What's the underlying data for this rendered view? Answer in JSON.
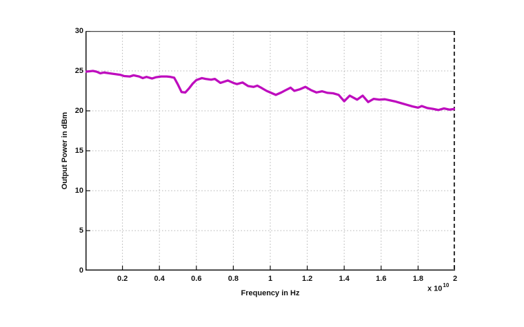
{
  "figure": {
    "background": "#ffffff"
  },
  "chart_data": {
    "type": "line",
    "title": "",
    "xlabel": "Frequency in Hz",
    "ylabel": "Output Power in dBm",
    "x_exponent_base": "x 10",
    "x_exponent_sup": "10",
    "x_units_note": "x values are in units of 1e10 Hz as implied by axis exponent",
    "xlim": [
      0,
      2
    ],
    "ylim": [
      0,
      30
    ],
    "xticks": [
      0.2,
      0.4,
      0.6,
      0.8,
      1,
      1.2,
      1.4,
      1.6,
      1.8,
      2
    ],
    "xtick_labels": [
      "0.2",
      "0.4",
      "0.6",
      "0.8",
      "1",
      "1.2",
      "1.4",
      "1.6",
      "1.8",
      "2"
    ],
    "yticks": [
      0,
      5,
      10,
      15,
      20,
      25,
      30
    ],
    "ytick_labels": [
      "0",
      "5",
      "10",
      "15",
      "20",
      "25",
      "30"
    ],
    "grid": true,
    "legend": null,
    "colors": {
      "line": "#be0dbe",
      "grid": "#b5b5b5",
      "axis": "#111111",
      "box_top": "#454545",
      "box_right_dashed": "#2b2b2b"
    },
    "series": [
      {
        "name": "Output Power",
        "color": "#be0dbe",
        "x": [
          0.0,
          0.02,
          0.04,
          0.06,
          0.08,
          0.1,
          0.13,
          0.16,
          0.19,
          0.21,
          0.24,
          0.26,
          0.29,
          0.31,
          0.33,
          0.36,
          0.38,
          0.41,
          0.44,
          0.46,
          0.48,
          0.5,
          0.52,
          0.54,
          0.56,
          0.58,
          0.6,
          0.63,
          0.65,
          0.68,
          0.7,
          0.73,
          0.75,
          0.77,
          0.8,
          0.82,
          0.85,
          0.88,
          0.91,
          0.93,
          0.95,
          0.98,
          1.0,
          1.03,
          1.06,
          1.08,
          1.11,
          1.13,
          1.16,
          1.19,
          1.22,
          1.25,
          1.28,
          1.31,
          1.34,
          1.37,
          1.4,
          1.43,
          1.47,
          1.5,
          1.53,
          1.56,
          1.59,
          1.62,
          1.65,
          1.68,
          1.71,
          1.74,
          1.77,
          1.8,
          1.82,
          1.85,
          1.88,
          1.91,
          1.94,
          1.97,
          2.0
        ],
        "y": [
          24.9,
          24.95,
          25.0,
          24.9,
          24.7,
          24.8,
          24.7,
          24.6,
          24.5,
          24.35,
          24.3,
          24.45,
          24.3,
          24.1,
          24.25,
          24.05,
          24.2,
          24.3,
          24.3,
          24.25,
          24.15,
          23.3,
          22.35,
          22.3,
          22.8,
          23.4,
          23.85,
          24.1,
          24.0,
          23.9,
          24.0,
          23.5,
          23.65,
          23.8,
          23.5,
          23.35,
          23.55,
          23.1,
          23.0,
          23.15,
          22.9,
          22.5,
          22.3,
          22.0,
          22.3,
          22.55,
          22.9,
          22.5,
          22.7,
          23.0,
          22.6,
          22.3,
          22.45,
          22.25,
          22.2,
          22.0,
          21.2,
          21.9,
          21.4,
          21.9,
          21.1,
          21.5,
          21.4,
          21.45,
          21.3,
          21.15,
          20.95,
          20.75,
          20.55,
          20.4,
          20.6,
          20.35,
          20.25,
          20.1,
          20.3,
          20.15,
          20.25
        ]
      }
    ]
  }
}
